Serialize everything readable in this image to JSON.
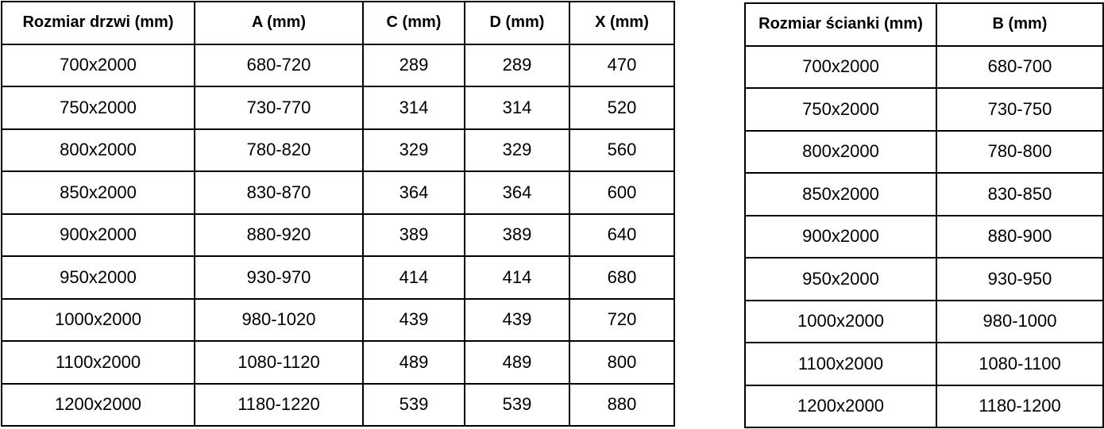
{
  "page": {
    "background_color": "#ffffff",
    "border_color": "#000000",
    "text_color": "#000000"
  },
  "door_table": {
    "headers": [
      "Rozmiar drzwi (mm)",
      "A (mm)",
      "C (mm)",
      "D (mm)",
      "X (mm)"
    ],
    "rows": [
      [
        "700x2000",
        "680-720",
        "289",
        "289",
        "470"
      ],
      [
        "750x2000",
        "730-770",
        "314",
        "314",
        "520"
      ],
      [
        "800x2000",
        "780-820",
        "329",
        "329",
        "560"
      ],
      [
        "850x2000",
        "830-870",
        "364",
        "364",
        "600"
      ],
      [
        "900x2000",
        "880-920",
        "389",
        "389",
        "640"
      ],
      [
        "950x2000",
        "930-970",
        "414",
        "414",
        "680"
      ],
      [
        "1000x2000",
        "980-1020",
        "439",
        "439",
        "720"
      ],
      [
        "1100x2000",
        "1080-1120",
        "489",
        "489",
        "800"
      ],
      [
        "1200x2000",
        "1180-1220",
        "539",
        "539",
        "880"
      ]
    ]
  },
  "wall_table": {
    "headers": [
      "Rozmiar ścianki (mm)",
      "B (mm)"
    ],
    "rows": [
      [
        "700x2000",
        "680-700"
      ],
      [
        "750x2000",
        "730-750"
      ],
      [
        "800x2000",
        "780-800"
      ],
      [
        "850x2000",
        "830-850"
      ],
      [
        "900x2000",
        "880-900"
      ],
      [
        "950x2000",
        "930-950"
      ],
      [
        "1000x2000",
        "980-1000"
      ],
      [
        "1100x2000",
        "1080-1100"
      ],
      [
        "1200x2000",
        "1180-1200"
      ]
    ]
  }
}
